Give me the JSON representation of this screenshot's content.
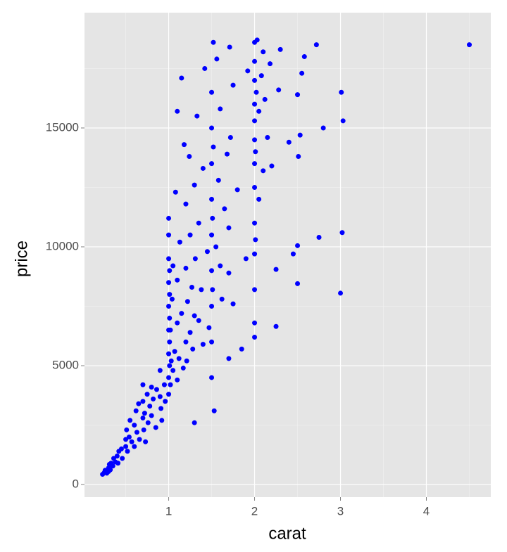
{
  "chart_data": {
    "type": "scatter",
    "x_label": "carat",
    "y_label": "price",
    "color": "#0000ff",
    "xlim": [
      0.02,
      4.75
    ],
    "ylim": [
      -530,
      19850
    ],
    "xticks": [
      1,
      2,
      3,
      4
    ],
    "yticks": [
      0,
      5000,
      10000,
      15000
    ],
    "x_minor_breaks": [
      0.5,
      1.5,
      2.5,
      3.5,
      4.5
    ],
    "y_minor_breaks": [
      2500,
      7500,
      12500,
      17500
    ],
    "grid": true,
    "x": [
      0.23,
      0.25,
      0.26,
      0.28,
      0.3,
      0.3,
      0.31,
      0.32,
      0.33,
      0.35,
      0.36,
      0.38,
      0.4,
      0.41,
      0.42,
      0.45,
      0.46,
      0.5,
      0.5,
      0.51,
      0.52,
      0.54,
      0.55,
      0.57,
      0.6,
      0.6,
      0.62,
      0.63,
      0.65,
      0.66,
      0.7,
      0.7,
      0.7,
      0.71,
      0.72,
      0.73,
      0.75,
      0.76,
      0.78,
      0.8,
      0.8,
      0.82,
      0.85,
      0.86,
      0.9,
      0.9,
      0.91,
      0.92,
      0.95,
      0.96,
      1,
      1,
      1,
      1,
      1,
      1,
      1,
      1,
      1,
      1.01,
      1.01,
      1.01,
      1.01,
      1.01,
      1.02,
      1.02,
      1.03,
      1.04,
      1.05,
      1.05,
      1.07,
      1.08,
      1.1,
      1.1,
      1.1,
      1.1,
      1.12,
      1.13,
      1.15,
      1.15,
      1.17,
      1.18,
      1.2,
      1.2,
      1.2,
      1.21,
      1.22,
      1.24,
      1.25,
      1.25,
      1.27,
      1.28,
      1.3,
      1.3,
      1.3,
      1.31,
      1.33,
      1.35,
      1.35,
      1.38,
      1.4,
      1.4,
      1.42,
      1.45,
      1.47,
      1.5,
      1.5,
      1.5,
      1.5,
      1.5,
      1.5,
      1.5,
      1.5,
      1.5,
      1.51,
      1.51,
      1.52,
      1.52,
      1.53,
      1.55,
      1.56,
      1.58,
      1.6,
      1.6,
      1.62,
      1.65,
      1.68,
      1.7,
      1.7,
      1.7,
      1.71,
      1.72,
      1.75,
      1.75,
      1.8,
      1.85,
      1.9,
      1.92,
      2,
      2,
      2,
      2,
      2,
      2,
      2,
      2,
      2,
      2,
      2,
      2,
      2,
      2.01,
      2.01,
      2.02,
      2.03,
      2.05,
      2.05,
      2.08,
      2.1,
      2.1,
      2.12,
      2.15,
      2.18,
      2.2,
      2.25,
      2.25,
      2.28,
      2.3,
      2.4,
      2.45,
      2.5,
      2.5,
      2.5,
      2.51,
      2.53,
      2.55,
      2.58,
      2.72,
      2.75,
      2.8,
      3,
      3.01,
      3.02,
      3.03,
      4.5
    ],
    "values": [
      430,
      500,
      600,
      480,
      550,
      700,
      850,
      620,
      900,
      780,
      1100,
      950,
      1200,
      900,
      1400,
      1500,
      1100,
      1600,
      1900,
      2300,
      1400,
      2000,
      2700,
      1800,
      2500,
      1600,
      3100,
      2200,
      3400,
      1900,
      2800,
      3500,
      4200,
      2300,
      3000,
      1800,
      3800,
      2600,
      3300,
      4100,
      2900,
      3600,
      2400,
      4000,
      3700,
      4800,
      3200,
      2700,
      4200,
      3500,
      4500,
      5500,
      6500,
      7500,
      8500,
      9500,
      10500,
      11200,
      3800,
      5000,
      6000,
      7000,
      8000,
      9000,
      4200,
      6500,
      5200,
      7800,
      4800,
      9200,
      5600,
      12300,
      4400,
      6800,
      8600,
      15700,
      5300,
      10200,
      7200,
      17100,
      4900,
      14300,
      6000,
      9100,
      11800,
      5200,
      7700,
      13800,
      6400,
      10500,
      8300,
      5700,
      2600,
      7100,
      12600,
      9500,
      15500,
      6900,
      11000,
      8200,
      5900,
      13300,
      17500,
      9800,
      6600,
      4500,
      6000,
      7500,
      9000,
      10500,
      12000,
      13500,
      15000,
      16500,
      11200,
      8200,
      18600,
      14200,
      3100,
      10000,
      17900,
      12800,
      9200,
      15800,
      7800,
      11600,
      13900,
      5300,
      8900,
      10800,
      18400,
      14600,
      16800,
      7600,
      12400,
      5700,
      9500,
      17400,
      6200,
      6800,
      8200,
      9700,
      11000,
      12500,
      13500,
      14500,
      15300,
      16000,
      17000,
      17800,
      18600,
      10300,
      14000,
      16500,
      18700,
      12000,
      15700,
      17200,
      13200,
      18200,
      16200,
      14600,
      17700,
      13400,
      9050,
      6650,
      16600,
      18300,
      14400,
      9700,
      8450,
      10050,
      16400,
      13800,
      14700,
      17300,
      18000,
      18500,
      10400,
      15000,
      8050,
      16500,
      10600,
      15300,
      18500
    ]
  }
}
